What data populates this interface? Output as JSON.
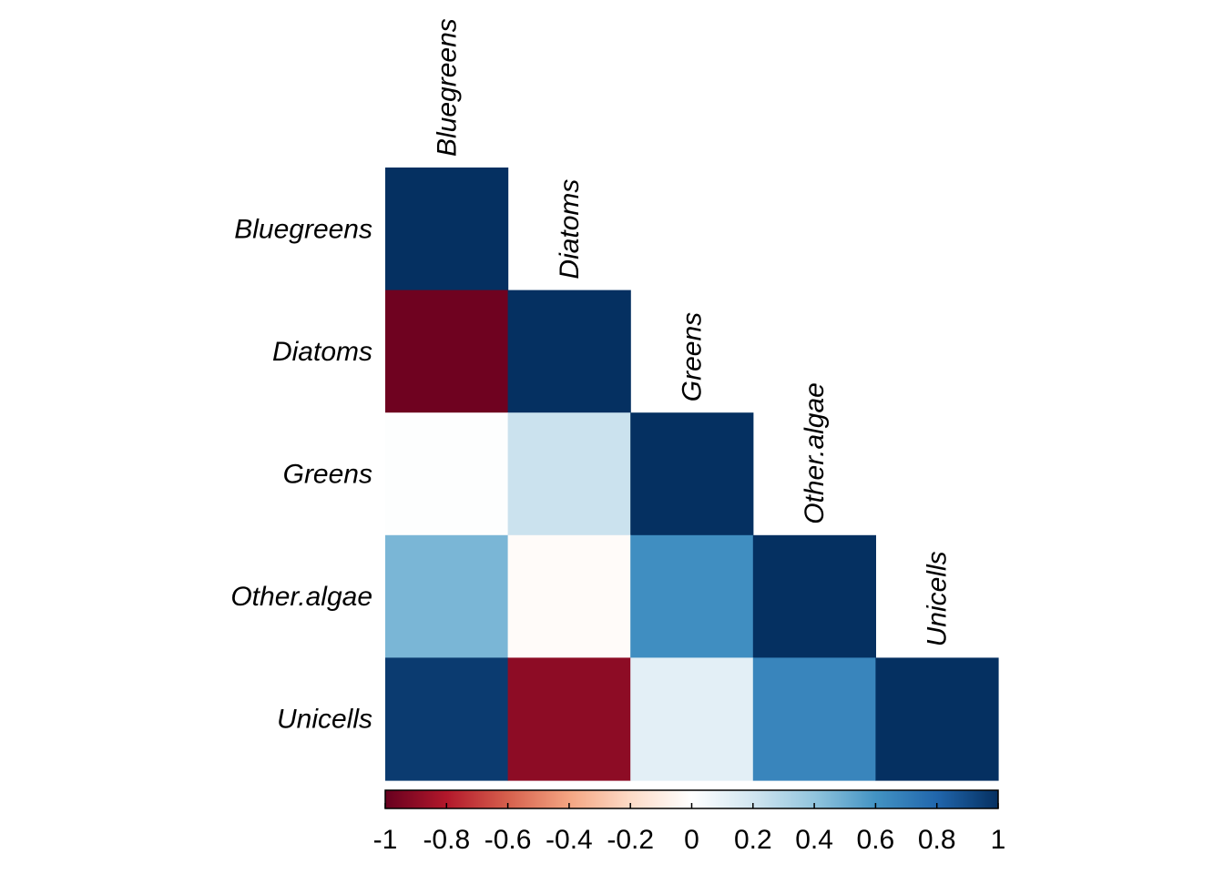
{
  "chart_data": {
    "type": "heatmap",
    "subtype": "correlation-matrix-lower-triangle",
    "title": "",
    "variables": [
      "Bluegreens",
      "Diatoms",
      "Greens",
      "Other.algae",
      "Unicells"
    ],
    "matrix": [
      [
        1.0,
        null,
        null,
        null,
        null
      ],
      [
        -0.98,
        1.0,
        null,
        null,
        null
      ],
      [
        0.01,
        0.22,
        1.0,
        null,
        null
      ],
      [
        0.46,
        -0.02,
        0.62,
        1.0,
        null
      ],
      [
        0.96,
        -0.9,
        0.12,
        0.66,
        1.0
      ]
    ],
    "colorbar": {
      "range": [
        -1,
        1
      ],
      "ticks": [
        "-1",
        "-0.8",
        "-0.6",
        "-0.4",
        "-0.2",
        "0",
        "0.2",
        "0.4",
        "0.6",
        "0.8",
        "1"
      ],
      "position": "bottom",
      "colors": [
        "#67001F",
        "#B2182B",
        "#D6604D",
        "#F4A582",
        "#FDDBC7",
        "#FFFFFF",
        "#D1E5F0",
        "#92C5DE",
        "#4393C3",
        "#2166AC",
        "#053061"
      ]
    },
    "grid": false
  }
}
